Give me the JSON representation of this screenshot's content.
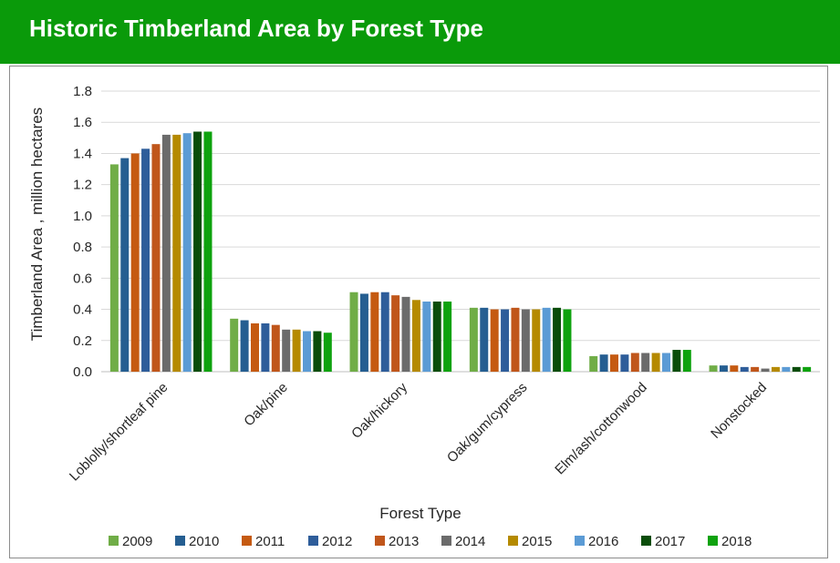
{
  "banner": {
    "title": "Historic Timberland Area by Forest Type"
  },
  "chart_data": {
    "type": "bar",
    "title": "",
    "xlabel": "Forest Type",
    "ylabel": "Timberland Area , million hectares",
    "ylim": [
      0,
      1.8
    ],
    "yticks": [
      "0.0",
      "0.2",
      "0.4",
      "0.6",
      "0.8",
      "1.0",
      "1.2",
      "1.4",
      "1.6",
      "1.8"
    ],
    "grid": true,
    "legend_position": "bottom",
    "categories": [
      "Loblolly/shortleaf pine",
      "Oak/pine",
      "Oak/hickory",
      "Oak/gum/cypress",
      "Elm/ash/cottonwood",
      "Nonstocked"
    ],
    "series": [
      {
        "name": "2009",
        "color": "#70ad47",
        "values": [
          1.33,
          0.34,
          0.51,
          0.41,
          0.1,
          0.04
        ]
      },
      {
        "name": "2010",
        "color": "#255e91",
        "values": [
          1.37,
          0.33,
          0.5,
          0.41,
          0.11,
          0.04
        ]
      },
      {
        "name": "2011",
        "color": "#c55a11",
        "values": [
          1.4,
          0.31,
          0.51,
          0.4,
          0.11,
          0.04
        ]
      },
      {
        "name": "2012",
        "color": "#2e5d9a",
        "values": [
          1.43,
          0.31,
          0.51,
          0.4,
          0.11,
          0.03
        ]
      },
      {
        "name": "2013",
        "color": "#c0561b",
        "values": [
          1.46,
          0.3,
          0.49,
          0.41,
          0.12,
          0.03
        ]
      },
      {
        "name": "2014",
        "color": "#6b6b6b",
        "values": [
          1.52,
          0.27,
          0.48,
          0.4,
          0.12,
          0.02
        ]
      },
      {
        "name": "2015",
        "color": "#b58a00",
        "values": [
          1.52,
          0.27,
          0.46,
          0.4,
          0.12,
          0.03
        ]
      },
      {
        "name": "2016",
        "color": "#5b9bd5",
        "values": [
          1.53,
          0.26,
          0.45,
          0.41,
          0.12,
          0.03
        ]
      },
      {
        "name": "2017",
        "color": "#0a4d0a",
        "values": [
          1.54,
          0.26,
          0.45,
          0.41,
          0.14,
          0.03
        ]
      },
      {
        "name": "2018",
        "color": "#0ea20e",
        "values": [
          1.54,
          0.25,
          0.45,
          0.4,
          0.14,
          0.03
        ]
      }
    ]
  }
}
